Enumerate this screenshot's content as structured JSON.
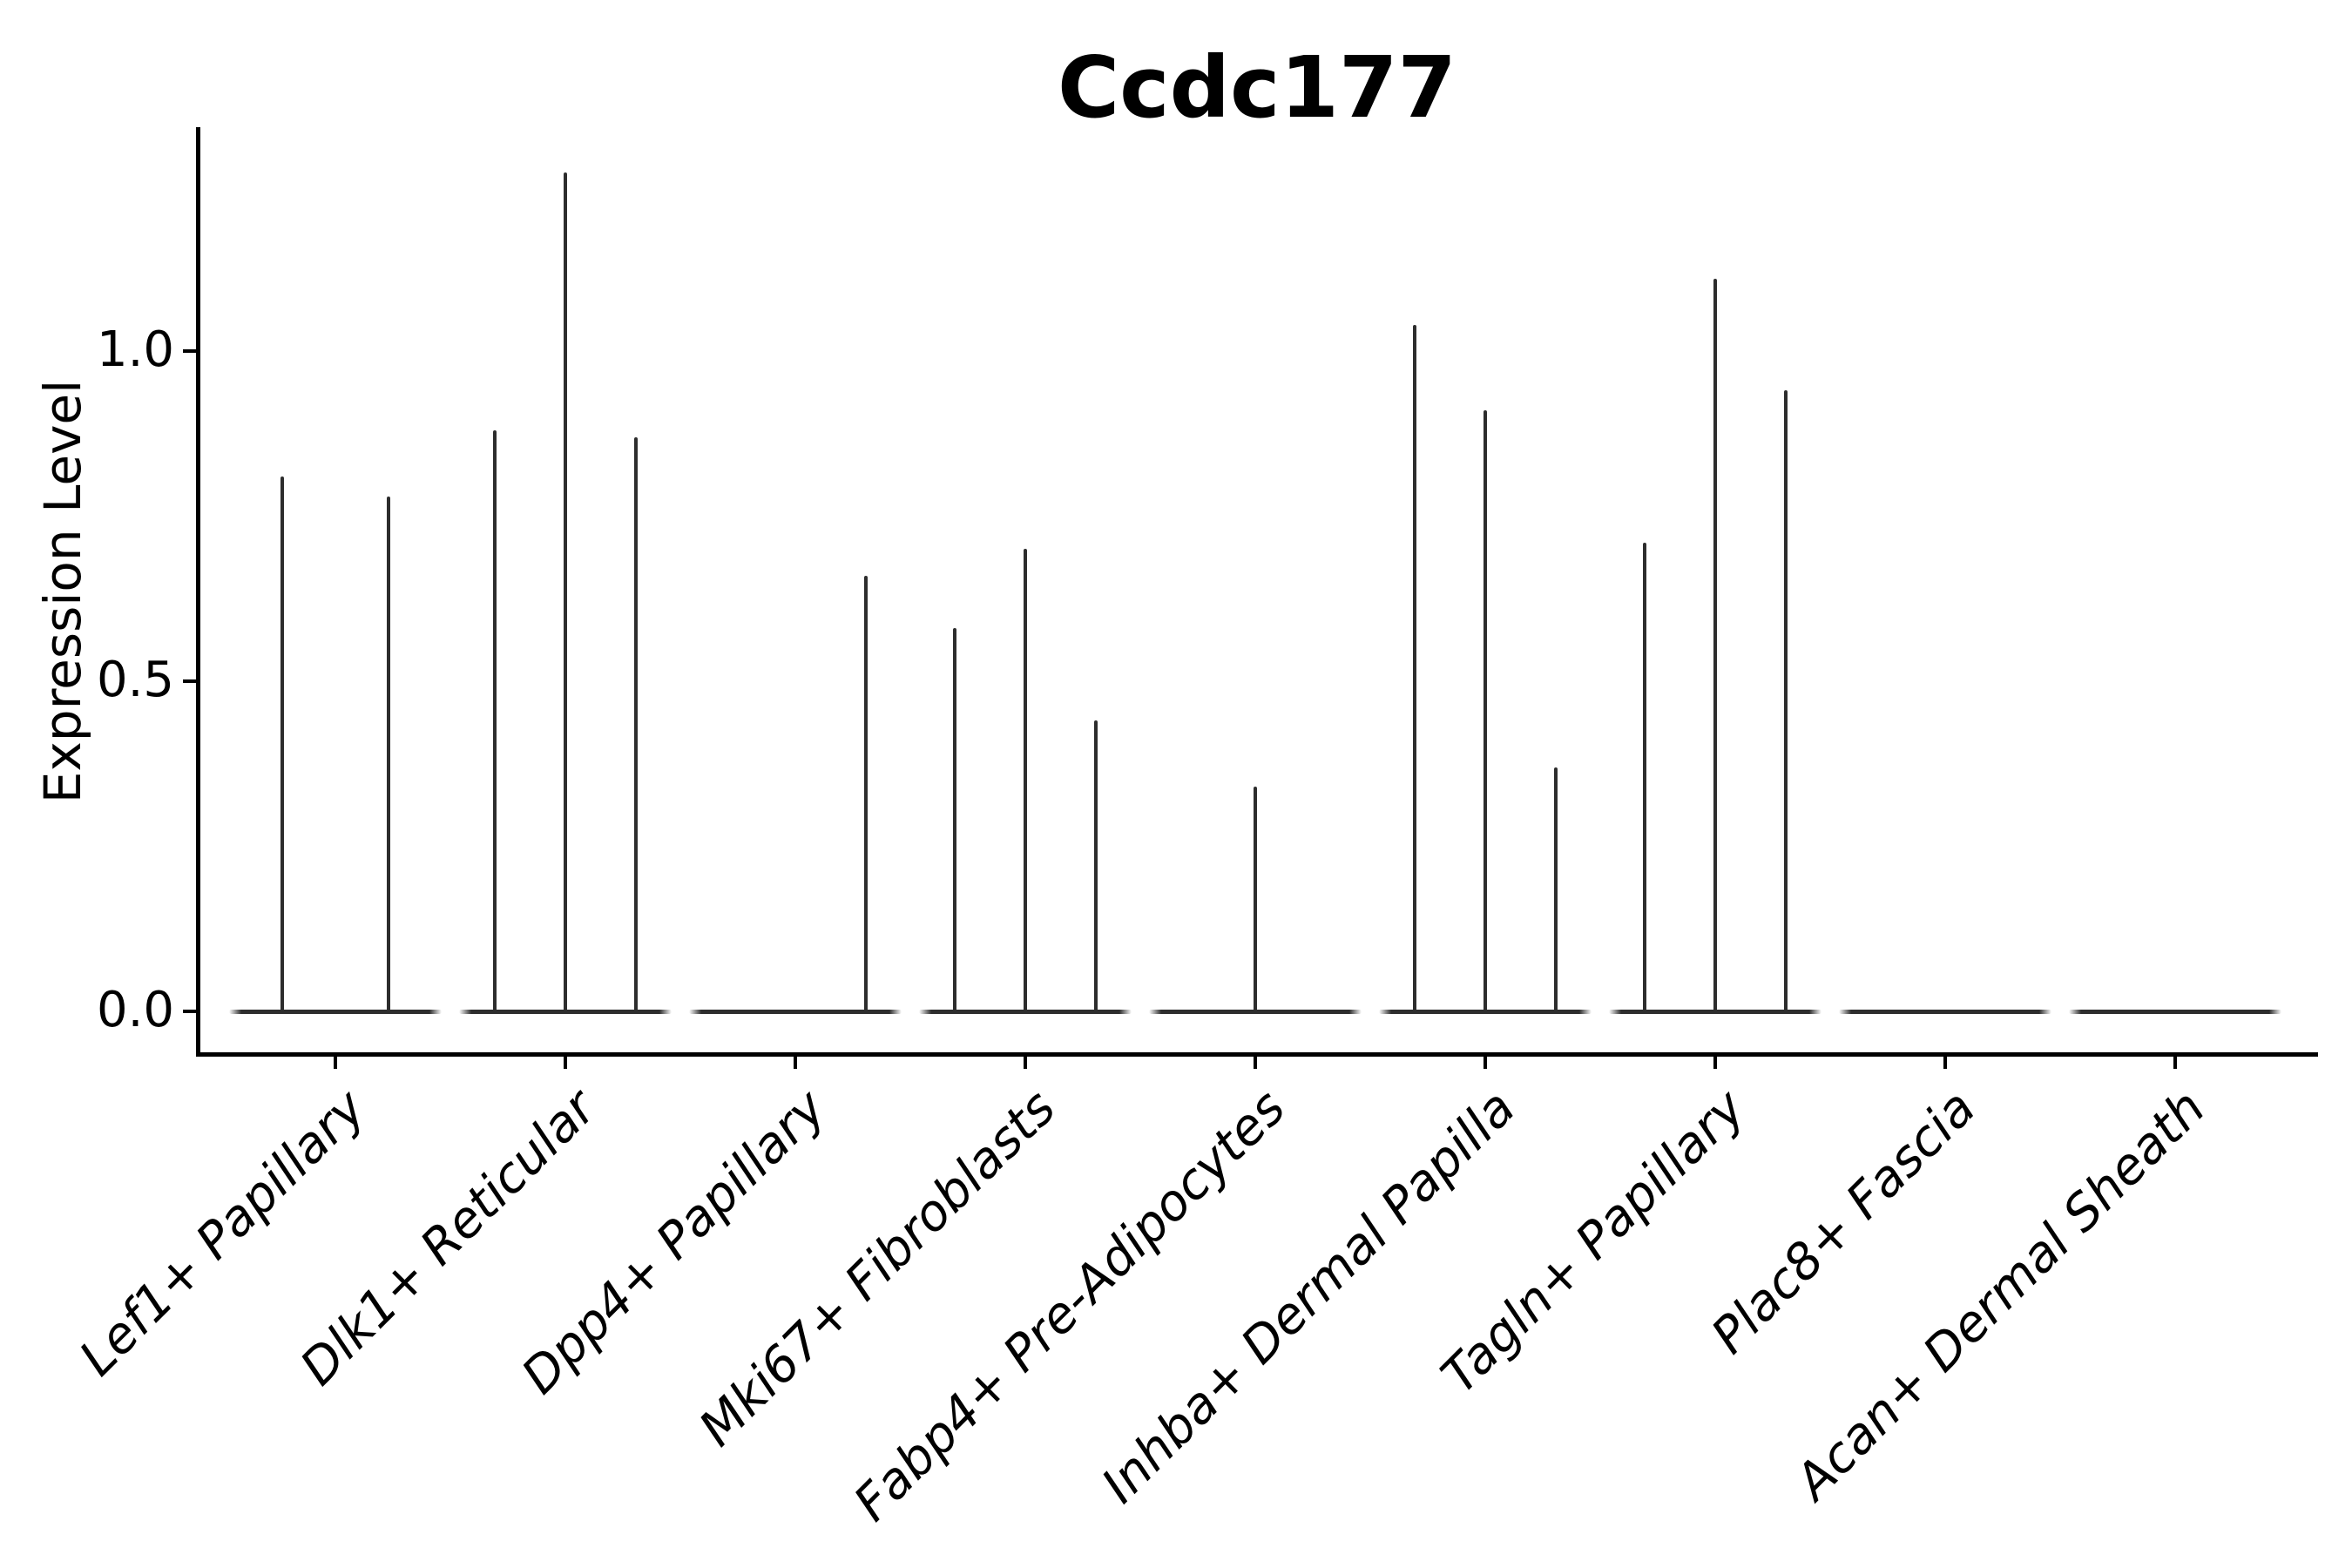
{
  "figure": {
    "kind": "violin-plot-figure",
    "title": "Ccdc177"
  },
  "chart_data": {
    "type": "violin",
    "title": "Ccdc177",
    "xlabel": "",
    "ylabel": "Expression Level",
    "ytick_labels": [
      "0.0",
      "0.5",
      "1.0"
    ],
    "ytick_values": [
      0.0,
      0.5,
      1.0
    ],
    "ylim": [
      -0.06,
      1.35
    ],
    "grid": false,
    "legend": "none",
    "categories": [
      "Lef1+ Papillary",
      "Dlk1+ Reticular",
      "Dpp4+ Papillary",
      "Mki67+ Fibroblasts",
      "Fabp4+ Pre-Adipocytes",
      "Inhba+ Dermal Papilla",
      "Tagln+ Papillary",
      "Plac8+ Fascia",
      "Acan+ Dermal Sheath"
    ],
    "groups": [
      {
        "category": "Lef1+ Papillary",
        "violin_max": [
          0.81,
          0.78
        ]
      },
      {
        "category": "Dlk1+ Reticular",
        "violin_max": [
          0.88,
          1.27,
          0.87
        ]
      },
      {
        "category": "Dpp4+ Papillary",
        "violin_max": [
          0.0,
          0.0,
          0.66
        ]
      },
      {
        "category": "Mki67+ Fibroblasts",
        "violin_max": [
          0.58,
          0.7,
          0.44
        ]
      },
      {
        "category": "Fabp4+ Pre-Adipocytes",
        "violin_max": [
          0.0,
          0.34,
          0.0
        ]
      },
      {
        "category": "Inhba+ Dermal Papilla",
        "violin_max": [
          1.04,
          0.91,
          0.37
        ]
      },
      {
        "category": "Tagln+ Papillary",
        "violin_max": [
          0.71,
          1.11,
          0.94
        ]
      },
      {
        "category": "Plac8+ Fascia",
        "violin_max": [
          0.0,
          0.0,
          0.0
        ]
      },
      {
        "category": "Acan+ Dermal Sheath",
        "violin_max": [
          0.0,
          0.0,
          0.0
        ]
      }
    ],
    "colors": {
      "violin_line": "#2d2d2d",
      "spine": "#000000",
      "text": "#000000",
      "background": "#ffffff"
    }
  }
}
